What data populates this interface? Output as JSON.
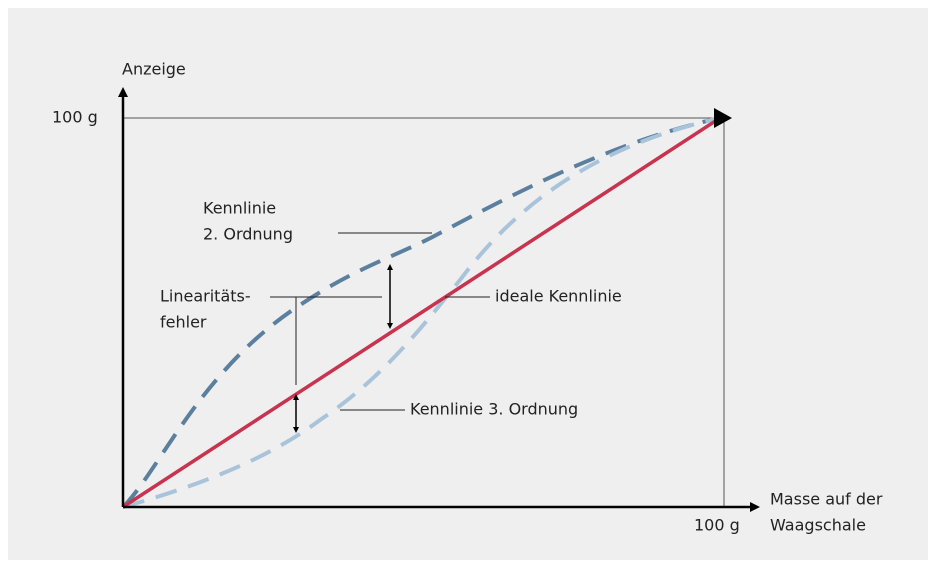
{
  "diagram": {
    "y_axis": {
      "label": "Anzeige",
      "max_label": "100 g"
    },
    "x_axis": {
      "label_lines": [
        "Masse auf der",
        "Waagschale"
      ],
      "max_label": "100 g"
    },
    "annotations": {
      "second_order": [
        "Kennlinie",
        "2. Ordnung"
      ],
      "linearity_error": [
        "Linearitäts-",
        "fehler"
      ],
      "ideal": "ideale Kennlinie",
      "third_order": "Kennlinie 3. Ordnung"
    }
  }
}
